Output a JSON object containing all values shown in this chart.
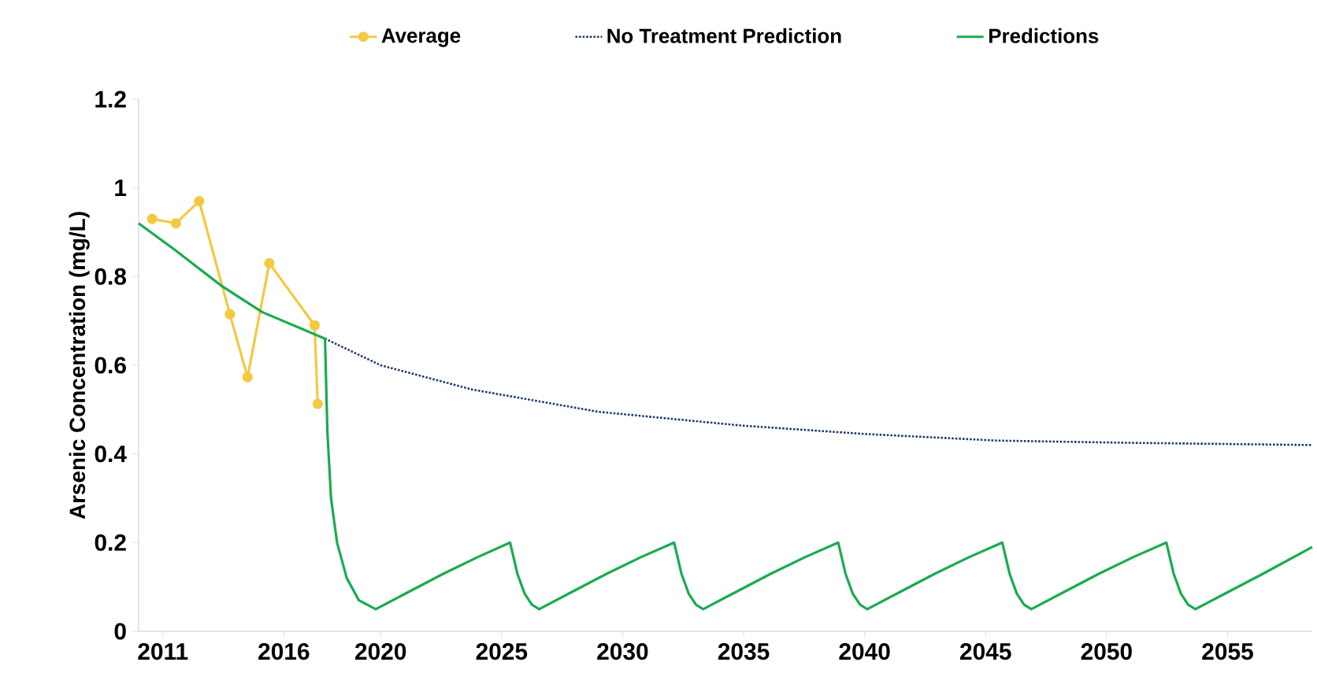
{
  "chart_data": {
    "type": "line",
    "ylabel": "Arsenic Concentration (mg/L)",
    "xlim": [
      2010,
      2058.5
    ],
    "ylim": [
      0,
      1.2
    ],
    "xticks": [
      2011,
      2016,
      2020,
      2025,
      2030,
      2035,
      2040,
      2045,
      2050,
      2055
    ],
    "yticks": [
      0,
      0.2,
      0.4,
      0.6,
      0.8,
      1,
      1.2
    ],
    "legend": "top",
    "grid": false,
    "series": [
      {
        "name": "Average",
        "color": "#f5c842",
        "marker": "circle",
        "line_style": "solid",
        "x": [
          2010.56,
          2011.54,
          2012.5,
          2013.77,
          2014.5,
          2015.4,
          2017.27,
          2017.4
        ],
        "values": [
          0.93,
          0.92,
          0.97,
          0.715,
          0.573,
          0.83,
          0.69,
          0.513
        ]
      },
      {
        "name": "No Treatment Prediction",
        "color": "#1f3a6e",
        "marker": "none",
        "line_style": "dotted",
        "x": [
          2017.7,
          2020,
          2023.8,
          2029,
          2034.9,
          2040,
          2045.5,
          2051,
          2058.5
        ],
        "values": [
          0.66,
          0.6,
          0.545,
          0.495,
          0.464,
          0.445,
          0.43,
          0.425,
          0.42
        ]
      },
      {
        "name": "Predictions",
        "color": "#1aab50",
        "marker": "none",
        "line_style": "solid",
        "x": [
          2010,
          2011.5,
          2013.4,
          2015.1,
          2017.7,
          2017.8,
          2017.95,
          2018.2,
          2018.6,
          2019.1,
          2019.8,
          2021.2,
          2022.6,
          2024,
          2025.35,
          2025.65,
          2025.95,
          2026.25,
          2026.55,
          2027.95,
          2029.35,
          2030.75,
          2032.13,
          2032.43,
          2032.73,
          2033.03,
          2033.33,
          2034.73,
          2036.13,
          2037.53,
          2038.91,
          2039.21,
          2039.51,
          2039.81,
          2040.11,
          2041.51,
          2042.91,
          2044.31,
          2045.69,
          2045.99,
          2046.29,
          2046.59,
          2046.89,
          2048.29,
          2049.69,
          2051.09,
          2052.47,
          2052.77,
          2053.07,
          2053.37,
          2053.67,
          2055.07,
          2056.47,
          2058.5
        ],
        "values": [
          0.92,
          0.86,
          0.78,
          0.72,
          0.66,
          0.45,
          0.3,
          0.2,
          0.12,
          0.07,
          0.05,
          0.09,
          0.13,
          0.167,
          0.2,
          0.13,
          0.085,
          0.06,
          0.05,
          0.09,
          0.13,
          0.167,
          0.2,
          0.13,
          0.085,
          0.06,
          0.05,
          0.09,
          0.13,
          0.167,
          0.2,
          0.13,
          0.085,
          0.06,
          0.05,
          0.09,
          0.13,
          0.167,
          0.2,
          0.13,
          0.085,
          0.06,
          0.05,
          0.09,
          0.13,
          0.167,
          0.2,
          0.13,
          0.085,
          0.06,
          0.05,
          0.09,
          0.13,
          0.19
        ]
      }
    ]
  }
}
